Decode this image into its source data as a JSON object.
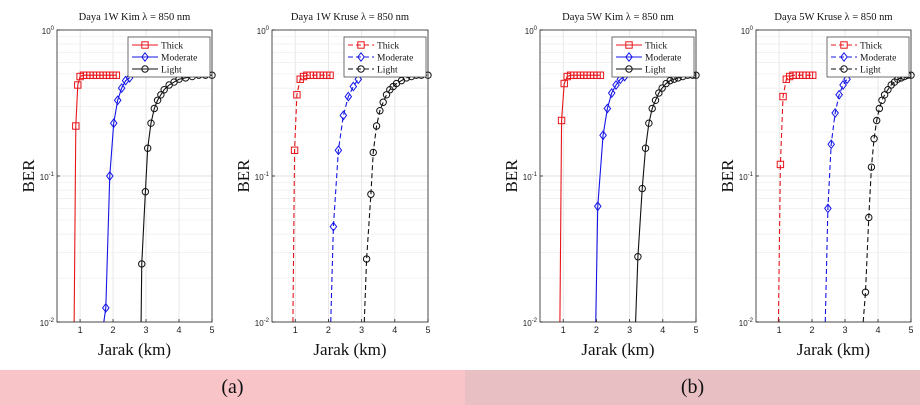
{
  "captions": {
    "a": "(a)",
    "b": "(b)"
  },
  "colors": {
    "thick": "#e8161b",
    "moderate": "#1515e8",
    "light": "#111111",
    "caption_a_bg": "#f8c4c8",
    "caption_b_bg": "#e8c0c4"
  },
  "chart_data": [
    {
      "type": "line",
      "title": "Daya 1W Kim λ = 850 nm",
      "xlabel": "Jarak (km)",
      "ylabel": "BER",
      "yscale": "log",
      "xlim": [
        0.3,
        5
      ],
      "ylim": [
        0.01,
        1
      ],
      "xticks": [
        "1",
        "2",
        "3",
        "4",
        "5"
      ],
      "yticks": [
        "10^-2",
        "10^-1",
        "10^0"
      ],
      "grid": true,
      "legend": "top-right",
      "series": [
        {
          "name": "Thick",
          "style": "solid",
          "marker": "square",
          "x": [
            0.82,
            0.87,
            0.93,
            1.0,
            1.1,
            1.2,
            1.3,
            1.4,
            1.5,
            1.6,
            1.7,
            1.8,
            1.9,
            2.0,
            2.1
          ],
          "y": [
            0.01,
            0.22,
            0.42,
            0.48,
            0.49,
            0.49,
            0.49,
            0.49,
            0.49,
            0.49,
            0.49,
            0.49,
            0.49,
            0.49,
            0.49
          ]
        },
        {
          "name": "Moderate",
          "style": "solid",
          "marker": "diamond",
          "x": [
            1.72,
            1.78,
            1.9,
            2.02,
            2.14,
            2.26,
            2.38,
            2.5
          ],
          "y": [
            0.01,
            0.0125,
            0.1,
            0.23,
            0.33,
            0.4,
            0.45,
            0.47
          ]
        },
        {
          "name": "Light",
          "style": "solid",
          "marker": "circle",
          "x": [
            2.85,
            2.87,
            2.98,
            3.05,
            3.15,
            3.25,
            3.35,
            3.45,
            3.55,
            3.7,
            3.85,
            4.0,
            4.2,
            4.4,
            4.6,
            4.8,
            5.0
          ],
          "y": [
            0.01,
            0.025,
            0.078,
            0.155,
            0.23,
            0.29,
            0.33,
            0.36,
            0.39,
            0.42,
            0.44,
            0.46,
            0.47,
            0.48,
            0.49,
            0.49,
            0.49
          ]
        }
      ]
    },
    {
      "type": "line",
      "title": "Daya 1W Kruse λ = 850 nm",
      "xlabel": "Jarak (km)",
      "ylabel": "BER",
      "yscale": "log",
      "xlim": [
        0.3,
        5
      ],
      "ylim": [
        0.01,
        1
      ],
      "xticks": [
        "1",
        "2",
        "3",
        "4",
        "5"
      ],
      "yticks": [
        "10^-2",
        "10^-1",
        "10^0"
      ],
      "grid": true,
      "legend": "top-right",
      "series": [
        {
          "name": "Thick",
          "style": "dashed",
          "marker": "square",
          "x": [
            0.93,
            0.98,
            1.05,
            1.15,
            1.25,
            1.35,
            1.45,
            1.55,
            1.65,
            1.75,
            1.85,
            1.95,
            2.05
          ],
          "y": [
            0.01,
            0.15,
            0.36,
            0.46,
            0.48,
            0.49,
            0.49,
            0.49,
            0.49,
            0.49,
            0.49,
            0.49,
            0.49
          ]
        },
        {
          "name": "Moderate",
          "style": "dashed",
          "marker": "diamond",
          "x": [
            2.07,
            2.15,
            2.3,
            2.45,
            2.6,
            2.75,
            2.9
          ],
          "y": [
            0.01,
            0.045,
            0.15,
            0.26,
            0.35,
            0.41,
            0.46
          ]
        },
        {
          "name": "Light",
          "style": "dashed",
          "marker": "circle",
          "x": [
            3.08,
            3.15,
            3.28,
            3.35,
            3.45,
            3.55,
            3.65,
            3.75,
            3.85,
            3.95,
            4.05,
            4.2,
            4.35,
            4.5,
            4.65,
            4.8,
            5.0
          ],
          "y": [
            0.01,
            0.027,
            0.075,
            0.145,
            0.22,
            0.28,
            0.32,
            0.36,
            0.39,
            0.41,
            0.43,
            0.45,
            0.47,
            0.48,
            0.49,
            0.49,
            0.49
          ]
        }
      ]
    },
    {
      "type": "line",
      "title": "Daya 5W Kim λ = 850 nm",
      "xlabel": "Jarak (km)",
      "ylabel": "BER",
      "yscale": "log",
      "xlim": [
        0.3,
        5
      ],
      "ylim": [
        0.01,
        1
      ],
      "xticks": [
        "1",
        "2",
        "3",
        "4",
        "5"
      ],
      "yticks": [
        "10^-2",
        "10^-1",
        "10^0"
      ],
      "grid": true,
      "legend": "top-right",
      "series": [
        {
          "name": "Thick",
          "style": "solid",
          "marker": "square",
          "x": [
            0.9,
            0.95,
            1.03,
            1.12,
            1.22,
            1.32,
            1.42,
            1.52,
            1.62,
            1.72,
            1.82,
            1.92,
            2.02,
            2.12
          ],
          "y": [
            0.01,
            0.24,
            0.43,
            0.48,
            0.49,
            0.49,
            0.49,
            0.49,
            0.49,
            0.49,
            0.49,
            0.49,
            0.49,
            0.49
          ]
        },
        {
          "name": "Moderate",
          "style": "solid",
          "marker": "diamond",
          "x": [
            1.98,
            2.04,
            2.2,
            2.33,
            2.46,
            2.59,
            2.72,
            2.85
          ],
          "y": [
            0.01,
            0.062,
            0.19,
            0.29,
            0.37,
            0.42,
            0.46,
            0.48
          ]
        },
        {
          "name": "Light",
          "style": "solid",
          "marker": "circle",
          "x": [
            3.18,
            3.25,
            3.38,
            3.48,
            3.58,
            3.68,
            3.78,
            3.88,
            3.98,
            4.1,
            4.22,
            4.34,
            4.46,
            4.6,
            4.75,
            4.9,
            5.0
          ],
          "y": [
            0.01,
            0.028,
            0.082,
            0.155,
            0.23,
            0.29,
            0.33,
            0.37,
            0.4,
            0.43,
            0.45,
            0.46,
            0.47,
            0.48,
            0.49,
            0.49,
            0.49
          ]
        }
      ]
    },
    {
      "type": "line",
      "title": "Daya 5W Kruse λ = 850 nm",
      "xlabel": "Jarak (km)",
      "ylabel": "BER",
      "yscale": "log",
      "xlim": [
        0.3,
        5
      ],
      "ylim": [
        0.01,
        1
      ],
      "xticks": [
        "1",
        "2",
        "3",
        "4",
        "5"
      ],
      "yticks": [
        "10^-2",
        "10^-1",
        "10^0"
      ],
      "grid": true,
      "legend": "top-right",
      "series": [
        {
          "name": "Thick",
          "style": "dashed",
          "marker": "square",
          "x": [
            0.98,
            1.04,
            1.12,
            1.22,
            1.32,
            1.42,
            1.52,
            1.62,
            1.72,
            1.82,
            1.92,
            2.02
          ],
          "y": [
            0.01,
            0.12,
            0.35,
            0.46,
            0.48,
            0.49,
            0.49,
            0.49,
            0.49,
            0.49,
            0.49,
            0.49
          ]
        },
        {
          "name": "Moderate",
          "style": "dashed",
          "marker": "diamond",
          "x": [
            2.4,
            2.48,
            2.58,
            2.7,
            2.82,
            2.94,
            3.06
          ],
          "y": [
            0.01,
            0.06,
            0.165,
            0.27,
            0.36,
            0.42,
            0.46
          ]
        },
        {
          "name": "Light",
          "style": "dashed",
          "marker": "circle",
          "x": [
            3.55,
            3.62,
            3.72,
            3.8,
            3.88,
            3.96,
            4.04,
            4.12,
            4.2,
            4.3,
            4.4,
            4.5,
            4.6,
            4.7,
            4.8,
            4.9,
            5.0
          ],
          "y": [
            0.01,
            0.016,
            0.052,
            0.115,
            0.18,
            0.24,
            0.29,
            0.33,
            0.36,
            0.39,
            0.42,
            0.44,
            0.46,
            0.47,
            0.48,
            0.49,
            0.49
          ]
        }
      ]
    }
  ]
}
